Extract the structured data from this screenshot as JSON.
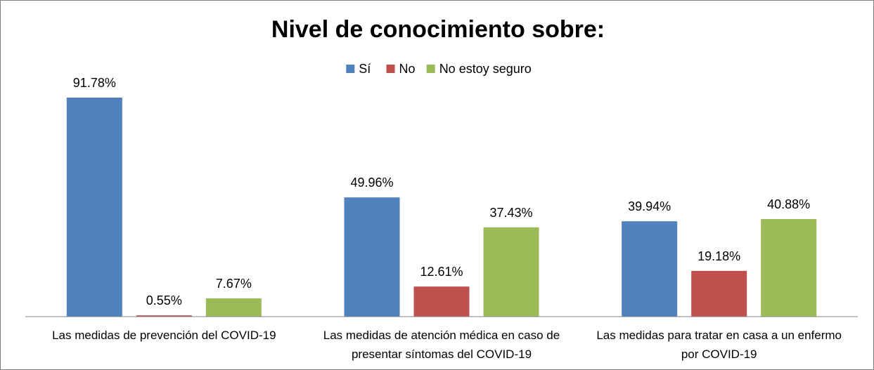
{
  "chart_data": {
    "type": "bar",
    "title": "Nivel de conocimiento sobre:",
    "categories": [
      [
        "Las medidas de prevención del COVID-19"
      ],
      [
        "Las medidas de atención médica en caso de",
        "presentar síntomas del COVID-19"
      ],
      [
        "Las medidas para tratar en casa a un enfermo",
        "por COVID-19"
      ]
    ],
    "series": [
      {
        "name": "Sí",
        "color": "#4f81bd",
        "values": [
          91.78,
          49.96,
          39.94
        ],
        "labels": [
          "91.78%",
          "49.96%",
          "39.94%"
        ]
      },
      {
        "name": "No",
        "color": "#c0504d",
        "values": [
          0.55,
          12.61,
          19.18
        ],
        "labels": [
          "0.55%",
          "12.61%",
          "19.18%"
        ]
      },
      {
        "name": "No estoy seguro",
        "color": "#9bbb59",
        "values": [
          7.67,
          37.43,
          40.88
        ],
        "labels": [
          "7.67%",
          "37.43%",
          "40.88%"
        ]
      }
    ],
    "xlabel": "",
    "ylabel": "",
    "ylim": [
      0,
      100
    ],
    "grid": false,
    "legend": "top-center"
  }
}
